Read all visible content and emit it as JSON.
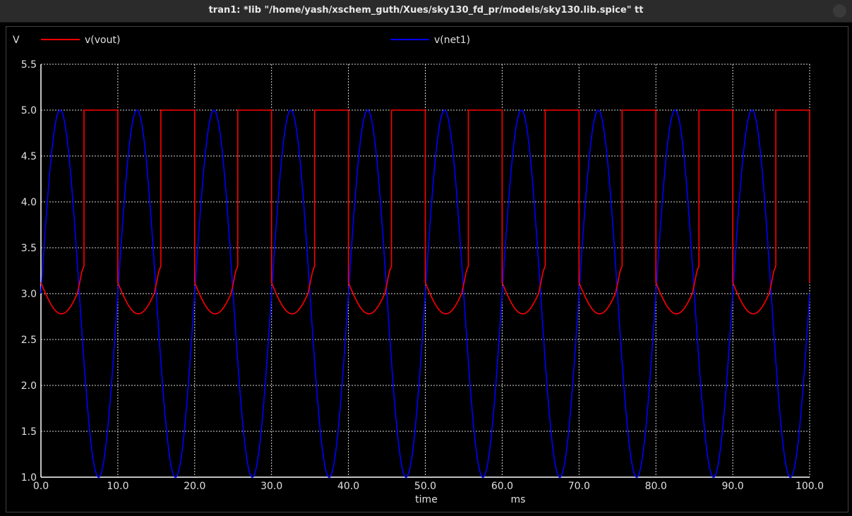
{
  "window": {
    "title": "tran1: *lib \"/home/yash/xschem_guth/Xues/sky130_fd_pr/models/sky130.lib.spice\" tt"
  },
  "chart_data": {
    "type": "line",
    "xlabel": "time",
    "xunit": "ms",
    "ylabel": "V",
    "xlim": [
      0,
      100
    ],
    "ylim": [
      1.0,
      5.5
    ],
    "xticks": [
      "0.0",
      "10.0",
      "20.0",
      "30.0",
      "40.0",
      "50.0",
      "60.0",
      "70.0",
      "80.0",
      "90.0",
      "100.0"
    ],
    "yticks": [
      "1.0",
      "1.5",
      "2.0",
      "2.5",
      "3.0",
      "3.5",
      "4.0",
      "4.5",
      "5.0",
      "5.5"
    ],
    "grid": true,
    "background": "#000000",
    "grid_color": "#ffffff",
    "series": [
      {
        "name": "v(vout)",
        "color": "#ff0000",
        "description_values": {
          "high_level": 5.0,
          "low_min": 2.78,
          "period_ms": 10,
          "switch_up_ms": [
            5.6,
            15.6,
            25.6,
            35.6,
            45.6,
            55.6,
            65.6,
            75.6,
            85.6,
            95.6
          ],
          "switch_down_ms": [
            10.0,
            20.0,
            30.0,
            40.0,
            50.0,
            60.0,
            70.0,
            80.0,
            90.0,
            100.0
          ]
        }
      },
      {
        "name": "v(net1)",
        "color": "#0000ff",
        "description_values": {
          "offset": 3.0,
          "amplitude": 2.0,
          "period_ms": 10,
          "max": 5.0,
          "min": 1.0
        }
      }
    ]
  }
}
